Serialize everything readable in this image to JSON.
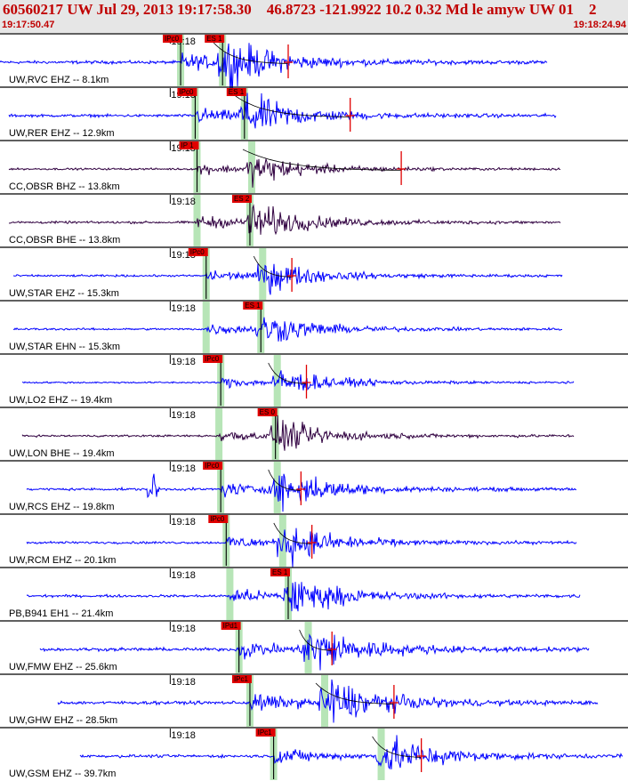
{
  "header": {
    "title": "60560217 UW Jul 29, 2013 19:17:58.30    46.8723 -121.9922 10.2 0.32 Md le amyw UW 01    2",
    "time_start": "19:17:50.47",
    "time_end": "19:18:24.94"
  },
  "chart_data": {
    "type": "line",
    "title": "60560217 UW Jul 29, 2013 19:17:58.30    46.8723 -121.9922 10.2 0.32 Md le amyw UW 01    2",
    "x_start": "19:17:50.47",
    "x_end": "19:18:24.94",
    "minute_mark_label": "19:18",
    "grid": false,
    "series": [
      {
        "label": "UW,RVC EHZ -- 8.1km",
        "color": "#0000ff",
        "p_pick": "IPc0",
        "s_pick": "ES 1",
        "p_time_s": 10.1,
        "s_time_s": 12.4,
        "coda_end_s": 16.0,
        "amplitude": 0.9
      },
      {
        "label": "UW,RER EHZ -- 12.9km",
        "color": "#0000ff",
        "p_pick": "IPc0",
        "s_pick": "ES 1",
        "p_time_s": 10.9,
        "s_time_s": 13.6,
        "coda_end_s": 19.4,
        "amplitude": 0.8
      },
      {
        "label": "CC,OBSR BHZ -- 13.8km",
        "color": "#300040",
        "p_pick": "IP 1",
        "s_pick": "",
        "p_time_s": 11.0,
        "s_time_s": 14.0,
        "coda_end_s": 22.2,
        "amplitude": 0.55
      },
      {
        "label": "CC,OBSR BHE -- 13.8km",
        "color": "#300040",
        "p_pick": "",
        "s_pick": "ES 2",
        "p_time_s": 11.0,
        "s_time_s": 13.9,
        "coda_end_s": 0,
        "amplitude": 0.7
      },
      {
        "label": "UW,STAR EHZ -- 15.3km",
        "color": "#0000ff",
        "p_pick": "IPc0",
        "s_pick": "",
        "p_time_s": 11.5,
        "s_time_s": 14.6,
        "coda_end_s": 16.2,
        "amplitude": 0.6
      },
      {
        "label": "UW,STAR EHN -- 15.3km",
        "color": "#0000ff",
        "p_pick": "",
        "s_pick": "ES 1",
        "p_time_s": 11.5,
        "s_time_s": 14.5,
        "coda_end_s": 0,
        "amplitude": 0.6
      },
      {
        "label": "UW,LO2 EHZ -- 19.4km",
        "color": "#0000ff",
        "p_pick": "IPc0",
        "s_pick": "",
        "p_time_s": 12.3,
        "s_time_s": 15.4,
        "coda_end_s": 17.0,
        "amplitude": 0.5
      },
      {
        "label": "UW,LON BHE -- 19.4km",
        "color": "#300040",
        "p_pick": "",
        "s_pick": "ES 0",
        "p_time_s": 12.2,
        "s_time_s": 15.3,
        "coda_end_s": 0,
        "amplitude": 0.6
      },
      {
        "label": "UW,RCS EHZ -- 19.8km",
        "color": "#0000ff",
        "p_pick": "IPc0",
        "s_pick": "",
        "p_time_s": 12.3,
        "s_time_s": 15.4,
        "coda_end_s": 16.7,
        "amplitude": 0.75
      },
      {
        "label": "UW,RCM EHZ -- 20.1km",
        "color": "#0000ff",
        "p_pick": "IPc0",
        "s_pick": "",
        "p_time_s": 12.6,
        "s_time_s": 15.7,
        "coda_end_s": 17.3,
        "amplitude": 0.7
      },
      {
        "label": "PB,B941 EH1 -- 21.4km",
        "color": "#0000ff",
        "p_pick": "",
        "s_pick": "ES 1",
        "p_time_s": 12.8,
        "s_time_s": 16.0,
        "coda_end_s": 0,
        "amplitude": 0.75
      },
      {
        "label": "UW,FMW EHZ -- 25.6km",
        "color": "#0000ff",
        "p_pick": "IPd1",
        "s_pick": "",
        "p_time_s": 13.3,
        "s_time_s": 17.1,
        "coda_end_s": 18.4,
        "amplitude": 0.95
      },
      {
        "label": "UW,GHW EHZ -- 28.5km",
        "color": "#0000ff",
        "p_pick": "IPc1",
        "s_pick": "",
        "p_time_s": 13.9,
        "s_time_s": 18.0,
        "coda_end_s": 21.8,
        "amplitude": 0.95
      },
      {
        "label": "UW,GSM EHZ -- 39.7km",
        "color": "#0000ff",
        "p_pick": "IPc1",
        "s_pick": "",
        "p_time_s": 15.2,
        "s_time_s": 21.1,
        "coda_end_s": 23.3,
        "amplitude": 0.85
      }
    ]
  }
}
